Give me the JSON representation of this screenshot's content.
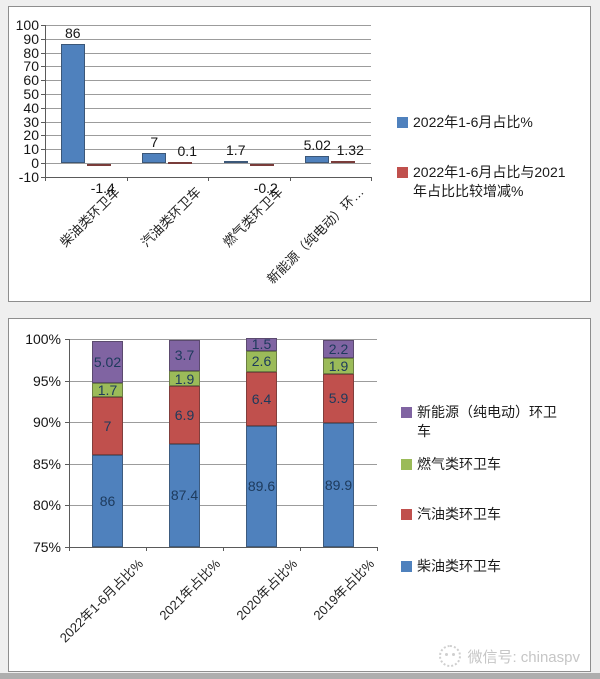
{
  "chart_data": [
    {
      "type": "bar",
      "title": "",
      "categories": [
        "柴油类环卫车",
        "汽油类环卫车",
        "燃气类环卫车",
        "新能源（纯电动）环…"
      ],
      "series": [
        {
          "name": "2022年1-6月占比%",
          "color": "#4f81bd",
          "values": [
            86,
            7,
            1.7,
            5.02
          ],
          "labels": [
            "86",
            "7",
            "1.7",
            "5.02"
          ]
        },
        {
          "name": "2022年1-6月占比与2021年占比比较增减%",
          "color": "#c0504d",
          "values": [
            -1.4,
            0.1,
            -0.2,
            1.32
          ],
          "labels": [
            "-1.4",
            "0.1",
            "-0.2",
            "1.32"
          ]
        }
      ],
      "ylim": [
        -10,
        100
      ],
      "yticks": [
        100,
        90,
        80,
        70,
        60,
        50,
        40,
        30,
        20,
        10,
        0,
        -10
      ],
      "grid": "on",
      "legend_position": "right"
    },
    {
      "type": "stacked-bar",
      "title": "",
      "categories": [
        "2022年1-6月占比%",
        "2021年占比%",
        "2020年占比%",
        "2019年占比%"
      ],
      "series": [
        {
          "name": "柴油类环卫车",
          "color": "#4f81bd",
          "values": [
            86,
            87.4,
            89.6,
            89.9
          ]
        },
        {
          "name": "汽油类环卫车",
          "color": "#c0504d",
          "values": [
            7,
            6.9,
            6.4,
            5.9
          ]
        },
        {
          "name": "燃气类环卫车",
          "color": "#9bbb59",
          "values": [
            1.7,
            1.9,
            2.6,
            1.9
          ]
        },
        {
          "name": "新能源（纯电动）环卫车",
          "color": "#8064a2",
          "values": [
            5.02,
            3.7,
            1.5,
            2.2
          ]
        }
      ],
      "ylim": [
        75,
        100
      ],
      "yticks": [
        "100%",
        "95%",
        "90%",
        "85%",
        "80%",
        "75%"
      ],
      "grid": "on",
      "legend_position": "right",
      "legend_order": [
        "新能源（纯电动）环卫车",
        "燃气类环卫车",
        "汽油类环卫车",
        "柴油类环卫车"
      ]
    }
  ],
  "footer": {
    "wechat_label": "微信号: chinaspv"
  }
}
